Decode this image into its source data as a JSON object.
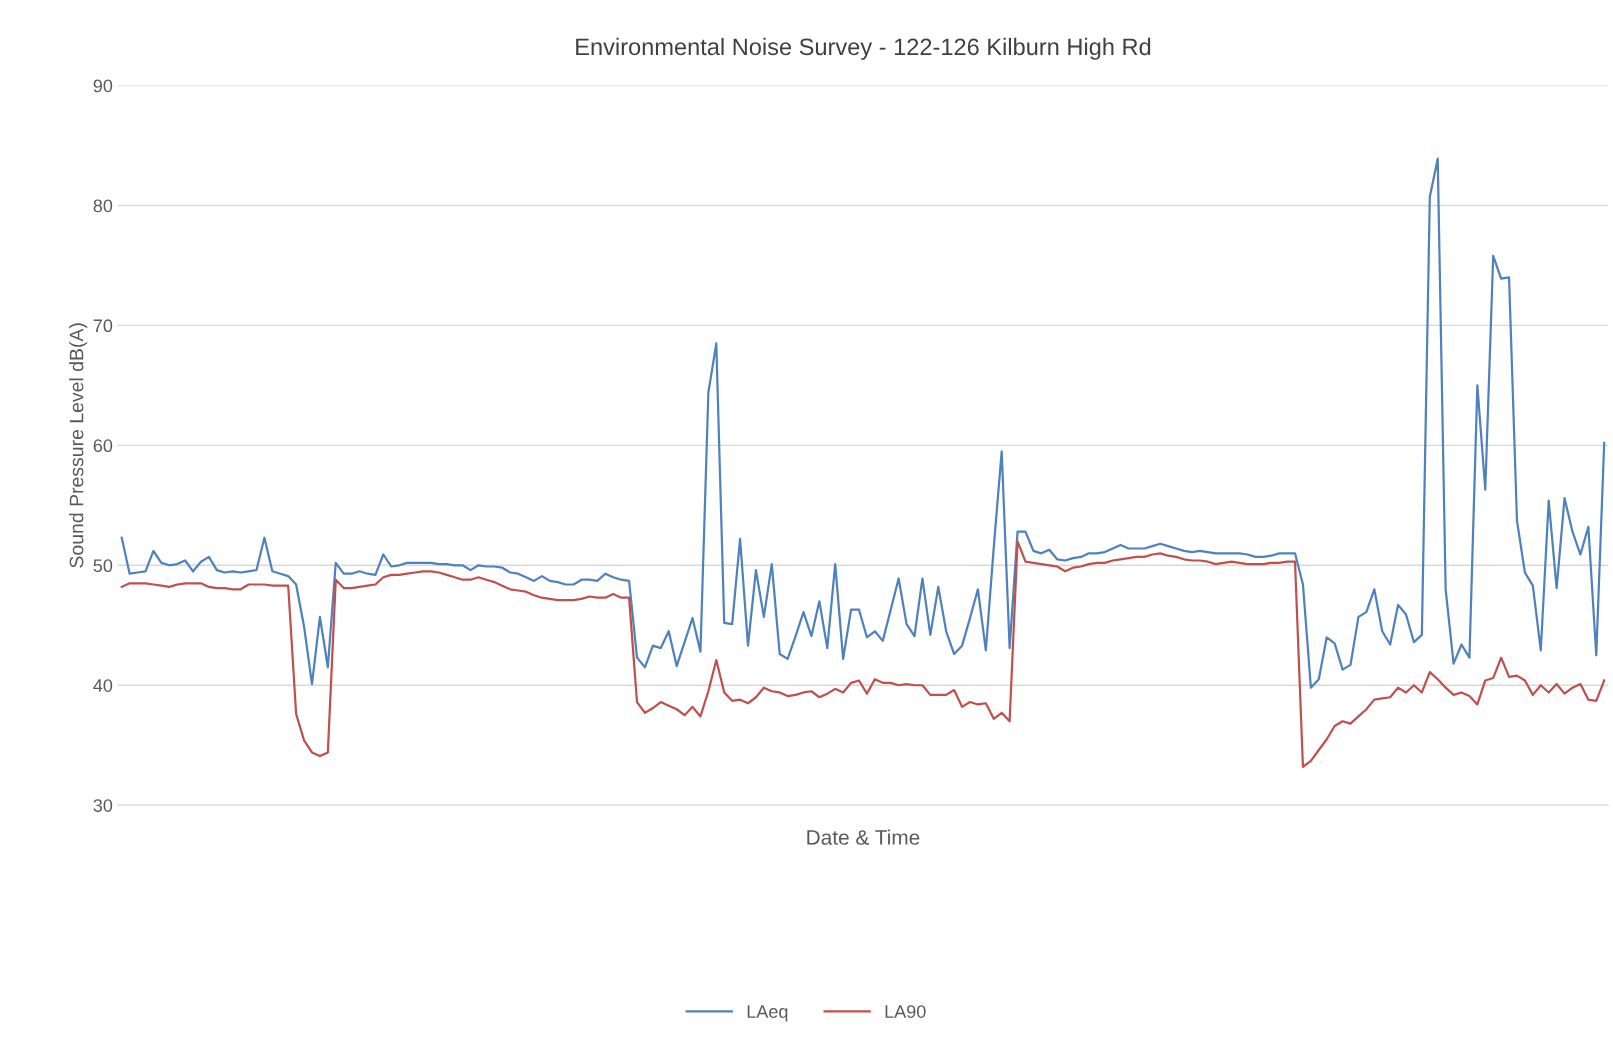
{
  "chart_data": {
    "type": "line",
    "title": "Environmental Noise Survey - 122-126 Kilburn High Rd",
    "xlabel": "Date & Time",
    "ylabel": "Sound Pressure Level dB(A)",
    "categories": [
      null,
      null,
      null,
      null,
      null,
      null,
      null,
      null,
      null,
      null,
      null,
      null,
      null,
      null,
      null,
      null,
      null,
      null,
      null,
      null,
      null,
      null,
      null,
      null,
      null,
      null,
      null,
      null,
      null,
      null,
      null,
      null,
      null,
      null,
      null,
      null,
      null,
      null,
      null,
      null,
      null,
      null,
      null,
      null,
      null,
      null,
      null,
      null,
      null,
      null,
      null,
      null,
      null,
      null,
      null,
      null,
      null,
      null,
      null,
      null,
      null,
      null,
      null,
      null,
      null,
      null,
      null,
      null,
      null,
      null,
      null,
      null,
      null,
      null,
      null,
      null,
      null,
      null,
      null,
      null,
      null,
      null,
      null,
      null,
      null,
      null,
      null,
      null,
      null,
      null,
      null,
      null,
      null,
      null,
      null,
      null,
      null,
      null,
      null,
      null,
      null,
      null,
      null,
      null,
      null,
      null,
      null,
      null,
      null,
      null,
      null,
      null,
      null,
      null,
      null,
      null,
      null,
      null,
      null,
      null,
      null,
      null,
      null,
      null,
      null,
      null,
      null,
      null,
      null,
      null,
      null,
      null,
      null,
      null,
      null,
      null,
      null,
      null,
      null,
      null,
      null,
      null,
      null,
      null,
      null,
      null,
      null,
      null,
      null,
      null,
      null,
      null,
      null,
      null,
      null,
      null,
      null,
      null,
      null,
      null,
      null,
      null,
      null,
      null,
      null,
      null,
      null,
      null,
      null,
      null,
      null,
      null,
      null,
      null,
      null,
      null,
      null,
      null,
      null,
      null,
      null,
      null,
      null,
      null,
      null,
      null,
      null,
      null
    ],
    "series": [
      {
        "name": "LAeq",
        "color": "#4f81bd",
        "values": [
          52.3,
          49.3,
          49.4,
          49.5,
          51.2,
          50.2,
          50.0,
          50.1,
          50.4,
          49.5,
          50.3,
          50.7,
          49.6,
          49.4,
          49.5,
          49.4,
          49.5,
          49.6,
          52.3,
          49.5,
          49.3,
          49.1,
          48.4,
          44.9,
          40.1,
          45.7,
          41.5,
          50.2,
          49.3,
          49.3,
          49.5,
          49.3,
          49.2,
          50.9,
          49.9,
          50.0,
          50.2,
          50.2,
          50.2,
          50.2,
          50.1,
          50.1,
          50.0,
          50.0,
          49.6,
          50.0,
          49.9,
          49.9,
          49.8,
          49.4,
          49.3,
          49.0,
          48.7,
          49.1,
          48.7,
          48.6,
          48.4,
          48.4,
          48.8,
          48.8,
          48.7,
          49.3,
          49.0,
          48.8,
          48.7,
          42.3,
          41.5,
          43.3,
          43.1,
          44.5,
          41.6,
          43.6,
          45.6,
          42.8,
          64.4,
          68.5,
          45.2,
          45.1,
          52.2,
          43.3,
          49.6,
          45.7,
          50.1,
          42.6,
          42.2,
          44.1,
          46.1,
          44.1,
          47.0,
          43.1,
          50.1,
          42.2,
          46.3,
          46.3,
          44.0,
          44.5,
          43.7,
          46.3,
          48.9,
          45.1,
          44.1,
          48.9,
          44.2,
          48.2,
          44.5,
          42.6,
          43.3,
          45.6,
          48.0,
          42.9,
          51.5,
          59.5,
          43.1,
          52.8,
          52.8,
          51.2,
          51.0,
          51.3,
          50.5,
          50.4,
          50.6,
          50.7,
          51.0,
          51.0,
          51.1,
          51.4,
          51.7,
          51.4,
          51.4,
          51.4,
          51.6,
          51.8,
          51.6,
          51.4,
          51.2,
          51.1,
          51.2,
          51.1,
          51.0,
          51.0,
          51.0,
          51.0,
          50.9,
          50.7,
          50.7,
          50.8,
          51.0,
          51.0,
          51.0,
          48.4,
          39.8,
          40.5,
          44.0,
          43.5,
          41.3,
          41.7,
          45.7,
          46.1,
          48.0,
          44.5,
          43.4,
          46.7,
          45.9,
          43.6,
          44.2,
          80.7,
          83.9,
          48.0,
          41.8,
          43.4,
          42.3,
          65.0,
          56.3,
          75.8,
          73.9,
          74.0,
          53.7,
          49.4,
          48.3,
          42.9,
          55.4,
          48.1,
          55.6,
          52.8,
          50.9,
          53.2,
          42.5,
          60.2
        ]
      },
      {
        "name": "LA90",
        "color": "#c0504d",
        "values": [
          48.2,
          48.5,
          48.5,
          48.5,
          48.4,
          48.3,
          48.2,
          48.4,
          48.5,
          48.5,
          48.5,
          48.2,
          48.1,
          48.1,
          48.0,
          48.0,
          48.4,
          48.4,
          48.4,
          48.3,
          48.3,
          48.3,
          37.6,
          35.4,
          34.4,
          34.1,
          34.4,
          48.8,
          48.1,
          48.1,
          48.2,
          48.3,
          48.4,
          49.0,
          49.2,
          49.2,
          49.3,
          49.4,
          49.5,
          49.5,
          49.4,
          49.2,
          49.0,
          48.8,
          48.8,
          49.0,
          48.8,
          48.6,
          48.3,
          48.0,
          47.9,
          47.8,
          47.5,
          47.3,
          47.2,
          47.1,
          47.1,
          47.1,
          47.2,
          47.4,
          47.3,
          47.3,
          47.6,
          47.3,
          47.3,
          38.6,
          37.7,
          38.1,
          38.6,
          38.3,
          38.0,
          37.5,
          38.2,
          37.4,
          39.5,
          42.1,
          39.4,
          38.7,
          38.8,
          38.5,
          39.0,
          39.8,
          39.5,
          39.4,
          39.1,
          39.2,
          39.4,
          39.5,
          39.0,
          39.3,
          39.7,
          39.4,
          40.2,
          40.4,
          39.3,
          40.5,
          40.2,
          40.2,
          40.0,
          40.1,
          40.0,
          40.0,
          39.2,
          39.2,
          39.2,
          39.6,
          38.2,
          38.6,
          38.4,
          38.5,
          37.2,
          37.7,
          37.0,
          52.0,
          50.3,
          50.2,
          50.1,
          50.0,
          49.9,
          49.5,
          49.8,
          49.9,
          50.1,
          50.2,
          50.2,
          50.4,
          50.5,
          50.6,
          50.7,
          50.7,
          50.9,
          51.0,
          50.8,
          50.7,
          50.5,
          50.4,
          50.4,
          50.3,
          50.1,
          50.2,
          50.3,
          50.2,
          50.1,
          50.1,
          50.1,
          50.2,
          50.2,
          50.3,
          50.3,
          33.2,
          33.7,
          34.6,
          35.5,
          36.6,
          37.0,
          36.8,
          37.4,
          38.0,
          38.8,
          38.9,
          39.0,
          39.8,
          39.4,
          40.0,
          39.4,
          41.1,
          40.5,
          39.8,
          39.2,
          39.4,
          39.1,
          38.4,
          40.4,
          40.6,
          42.3,
          40.7,
          40.8,
          40.4,
          39.2,
          40.0,
          39.4,
          40.1,
          39.3,
          39.8,
          40.1,
          38.8,
          38.7,
          40.4
        ]
      }
    ],
    "ylim": [
      30,
      90
    ],
    "yticks": [
      30,
      40,
      50,
      60,
      70,
      80,
      90
    ],
    "grid": "y",
    "legend": "bottom",
    "marker": "none",
    "line_style": "solid"
  }
}
